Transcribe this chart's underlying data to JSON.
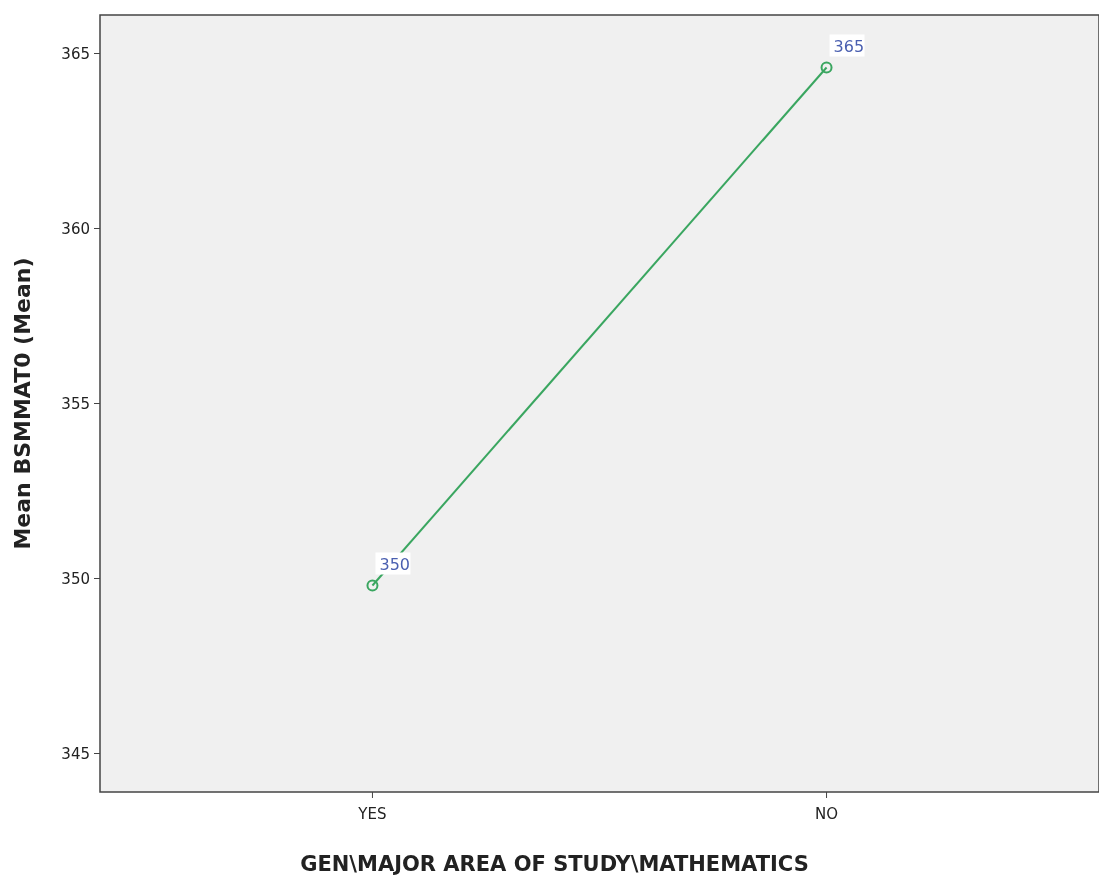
{
  "chart_data": {
    "type": "line",
    "xlabel": "GEN\\MAJOR AREA OF STUDY\\MATHEMATICS",
    "ylabel": "Mean BSMMAT0 (Mean)",
    "categories": [
      "YES",
      "NO"
    ],
    "series": [
      {
        "color": "#3aa660",
        "values": [
          349.8,
          364.6
        ],
        "value_labels": [
          "350",
          "365"
        ]
      }
    ],
    "ylim": [
      343.9,
      366.1
    ],
    "yticks": [
      345,
      350,
      355,
      360,
      365
    ],
    "grid": false,
    "marker": "circle",
    "line_style": "solid"
  }
}
